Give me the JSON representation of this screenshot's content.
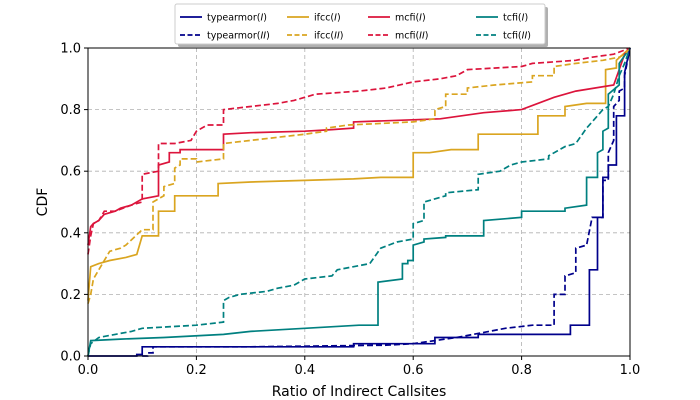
{
  "chart_data": {
    "type": "line",
    "subtype": "step-cdf",
    "title": "",
    "xlabel": "Ratio of Indirect Callsites",
    "ylabel": "CDF",
    "xlim": [
      0,
      1
    ],
    "ylim": [
      0,
      1
    ],
    "xticks": [
      "0.0",
      "0.2",
      "0.4",
      "0.6",
      "0.8",
      "1.0"
    ],
    "yticks": [
      "0.0",
      "0.2",
      "0.4",
      "0.6",
      "0.8",
      "1.0"
    ],
    "grid": true,
    "legend": {
      "placement": "top-center",
      "columns": 4
    },
    "series": [
      {
        "name": "typearmor(I)",
        "label_base": "typearmor(",
        "label_italic": "I",
        "label_end": ")",
        "color": "#00008b",
        "dash": "solid",
        "points": [
          [
            0.0,
            0.0
          ],
          [
            0.09,
            0.0
          ],
          [
            0.09,
            0.005
          ],
          [
            0.1,
            0.005
          ],
          [
            0.1,
            0.03
          ],
          [
            0.49,
            0.03
          ],
          [
            0.49,
            0.04
          ],
          [
            0.64,
            0.04
          ],
          [
            0.64,
            0.06
          ],
          [
            0.72,
            0.06
          ],
          [
            0.72,
            0.07
          ],
          [
            0.89,
            0.07
          ],
          [
            0.89,
            0.1
          ],
          [
            0.925,
            0.1
          ],
          [
            0.925,
            0.28
          ],
          [
            0.94,
            0.28
          ],
          [
            0.94,
            0.45
          ],
          [
            0.95,
            0.45
          ],
          [
            0.95,
            0.58
          ],
          [
            0.96,
            0.58
          ],
          [
            0.96,
            0.62
          ],
          [
            0.975,
            0.62
          ],
          [
            0.975,
            0.78
          ],
          [
            0.99,
            0.78
          ],
          [
            0.99,
            0.92
          ],
          [
            1.0,
            1.0
          ]
        ]
      },
      {
        "name": "ifcc(I)",
        "label_base": "ifcc(",
        "label_italic": "I",
        "label_end": ")",
        "color": "#daa520",
        "dash": "solid",
        "points": [
          [
            0.0,
            0.18
          ],
          [
            0.005,
            0.29
          ],
          [
            0.02,
            0.3
          ],
          [
            0.04,
            0.31
          ],
          [
            0.07,
            0.32
          ],
          [
            0.09,
            0.33
          ],
          [
            0.1,
            0.39
          ],
          [
            0.13,
            0.39
          ],
          [
            0.13,
            0.47
          ],
          [
            0.16,
            0.47
          ],
          [
            0.16,
            0.52
          ],
          [
            0.24,
            0.52
          ],
          [
            0.24,
            0.56
          ],
          [
            0.3,
            0.565
          ],
          [
            0.4,
            0.57
          ],
          [
            0.49,
            0.575
          ],
          [
            0.54,
            0.58
          ],
          [
            0.6,
            0.58
          ],
          [
            0.6,
            0.66
          ],
          [
            0.63,
            0.66
          ],
          [
            0.67,
            0.67
          ],
          [
            0.72,
            0.67
          ],
          [
            0.72,
            0.72
          ],
          [
            0.83,
            0.72
          ],
          [
            0.83,
            0.78
          ],
          [
            0.88,
            0.78
          ],
          [
            0.88,
            0.81
          ],
          [
            0.92,
            0.82
          ],
          [
            0.955,
            0.82
          ],
          [
            0.955,
            0.93
          ],
          [
            0.975,
            0.935
          ],
          [
            0.975,
            0.96
          ],
          [
            1.0,
            1.0
          ]
        ]
      },
      {
        "name": "mcfi(I)",
        "label_base": "mcfi(",
        "label_italic": "I",
        "label_end": ")",
        "color": "#dc143c",
        "dash": "solid",
        "points": [
          [
            0.0,
            0.36
          ],
          [
            0.005,
            0.42
          ],
          [
            0.01,
            0.43
          ],
          [
            0.02,
            0.44
          ],
          [
            0.03,
            0.46
          ],
          [
            0.05,
            0.47
          ],
          [
            0.06,
            0.48
          ],
          [
            0.08,
            0.49
          ],
          [
            0.1,
            0.51
          ],
          [
            0.13,
            0.52
          ],
          [
            0.13,
            0.62
          ],
          [
            0.15,
            0.63
          ],
          [
            0.15,
            0.66
          ],
          [
            0.17,
            0.66
          ],
          [
            0.17,
            0.67
          ],
          [
            0.25,
            0.67
          ],
          [
            0.25,
            0.72
          ],
          [
            0.3,
            0.725
          ],
          [
            0.4,
            0.73
          ],
          [
            0.45,
            0.735
          ],
          [
            0.49,
            0.74
          ],
          [
            0.49,
            0.76
          ],
          [
            0.65,
            0.77
          ],
          [
            0.73,
            0.79
          ],
          [
            0.8,
            0.8
          ],
          [
            0.86,
            0.84
          ],
          [
            0.9,
            0.86
          ],
          [
            0.97,
            0.88
          ],
          [
            0.98,
            0.93
          ],
          [
            0.99,
            0.98
          ],
          [
            1.0,
            1.0
          ]
        ]
      },
      {
        "name": "tcfi(I)",
        "label_base": "tcfi(",
        "label_italic": "I",
        "label_end": ")",
        "color": "#008080",
        "dash": "solid",
        "points": [
          [
            0.0,
            0.0
          ],
          [
            0.005,
            0.05
          ],
          [
            0.06,
            0.055
          ],
          [
            0.14,
            0.06
          ],
          [
            0.25,
            0.07
          ],
          [
            0.3,
            0.08
          ],
          [
            0.4,
            0.09
          ],
          [
            0.5,
            0.1
          ],
          [
            0.535,
            0.1
          ],
          [
            0.535,
            0.24
          ],
          [
            0.58,
            0.25
          ],
          [
            0.58,
            0.3
          ],
          [
            0.59,
            0.3
          ],
          [
            0.59,
            0.31
          ],
          [
            0.6,
            0.31
          ],
          [
            0.6,
            0.36
          ],
          [
            0.62,
            0.37
          ],
          [
            0.62,
            0.38
          ],
          [
            0.66,
            0.385
          ],
          [
            0.66,
            0.39
          ],
          [
            0.73,
            0.39
          ],
          [
            0.73,
            0.44
          ],
          [
            0.8,
            0.45
          ],
          [
            0.8,
            0.47
          ],
          [
            0.88,
            0.47
          ],
          [
            0.88,
            0.48
          ],
          [
            0.92,
            0.49
          ],
          [
            0.92,
            0.58
          ],
          [
            0.94,
            0.58
          ],
          [
            0.94,
            0.66
          ],
          [
            0.95,
            0.67
          ],
          [
            0.95,
            0.73
          ],
          [
            0.96,
            0.74
          ],
          [
            0.96,
            0.85
          ],
          [
            0.98,
            0.88
          ],
          [
            0.98,
            0.95
          ],
          [
            1.0,
            1.0
          ]
        ]
      },
      {
        "name": "typearmor(II)",
        "label_base": "typearmor(",
        "label_italic": "II",
        "label_end": ")",
        "color": "#00008b",
        "dash": "dashed",
        "points": [
          [
            0.1,
            0.0
          ],
          [
            0.11,
            0.0
          ],
          [
            0.11,
            0.01
          ],
          [
            0.12,
            0.01
          ],
          [
            0.12,
            0.03
          ],
          [
            0.3,
            0.03
          ],
          [
            0.55,
            0.035
          ],
          [
            0.6,
            0.04
          ],
          [
            0.64,
            0.05
          ],
          [
            0.68,
            0.06
          ],
          [
            0.74,
            0.08
          ],
          [
            0.77,
            0.09
          ],
          [
            0.82,
            0.1
          ],
          [
            0.86,
            0.1
          ],
          [
            0.86,
            0.2
          ],
          [
            0.88,
            0.2
          ],
          [
            0.88,
            0.26
          ],
          [
            0.9,
            0.27
          ],
          [
            0.9,
            0.35
          ],
          [
            0.92,
            0.36
          ],
          [
            0.93,
            0.45
          ],
          [
            0.95,
            0.45
          ],
          [
            0.95,
            0.57
          ],
          [
            0.96,
            0.57
          ],
          [
            0.96,
            0.66
          ],
          [
            0.97,
            0.7
          ],
          [
            0.97,
            0.81
          ],
          [
            0.98,
            0.83
          ],
          [
            0.98,
            0.86
          ],
          [
            0.99,
            0.87
          ],
          [
            0.99,
            0.91
          ],
          [
            1.0,
            1.0
          ]
        ]
      },
      {
        "name": "ifcc(II)",
        "label_base": "ifcc(",
        "label_italic": "II",
        "label_end": ")",
        "color": "#daa520",
        "dash": "dashed",
        "points": [
          [
            0.0,
            0.17
          ],
          [
            0.005,
            0.2
          ],
          [
            0.01,
            0.25
          ],
          [
            0.02,
            0.28
          ],
          [
            0.04,
            0.34
          ],
          [
            0.06,
            0.35
          ],
          [
            0.07,
            0.36
          ],
          [
            0.1,
            0.41
          ],
          [
            0.12,
            0.41
          ],
          [
            0.12,
            0.5
          ],
          [
            0.14,
            0.52
          ],
          [
            0.14,
            0.55
          ],
          [
            0.16,
            0.56
          ],
          [
            0.16,
            0.61
          ],
          [
            0.17,
            0.62
          ],
          [
            0.17,
            0.64
          ],
          [
            0.2,
            0.64
          ],
          [
            0.2,
            0.63
          ],
          [
            0.25,
            0.64
          ],
          [
            0.25,
            0.69
          ],
          [
            0.3,
            0.7
          ],
          [
            0.35,
            0.71
          ],
          [
            0.4,
            0.72
          ],
          [
            0.44,
            0.73
          ],
          [
            0.44,
            0.74
          ],
          [
            0.48,
            0.75
          ],
          [
            0.6,
            0.76
          ],
          [
            0.64,
            0.77
          ],
          [
            0.64,
            0.8
          ],
          [
            0.66,
            0.81
          ],
          [
            0.66,
            0.85
          ],
          [
            0.7,
            0.85
          ],
          [
            0.7,
            0.87
          ],
          [
            0.75,
            0.88
          ],
          [
            0.82,
            0.89
          ],
          [
            0.82,
            0.91
          ],
          [
            0.86,
            0.91
          ],
          [
            0.86,
            0.94
          ],
          [
            0.9,
            0.95
          ],
          [
            0.95,
            0.96
          ],
          [
            0.98,
            0.97
          ],
          [
            0.99,
            0.98
          ],
          [
            1.0,
            1.0
          ]
        ]
      },
      {
        "name": "mcfi(II)",
        "label_base": "mcfi(",
        "label_italic": "II",
        "label_end": ")",
        "color": "#dc143c",
        "dash": "dashed",
        "points": [
          [
            0.0,
            0.33
          ],
          [
            0.005,
            0.39
          ],
          [
            0.01,
            0.43
          ],
          [
            0.02,
            0.44
          ],
          [
            0.03,
            0.47
          ],
          [
            0.05,
            0.47
          ],
          [
            0.08,
            0.49
          ],
          [
            0.1,
            0.5
          ],
          [
            0.1,
            0.59
          ],
          [
            0.13,
            0.6
          ],
          [
            0.13,
            0.66
          ],
          [
            0.13,
            0.69
          ],
          [
            0.14,
            0.69
          ],
          [
            0.16,
            0.69
          ],
          [
            0.19,
            0.7
          ],
          [
            0.2,
            0.73
          ],
          [
            0.22,
            0.75
          ],
          [
            0.25,
            0.75
          ],
          [
            0.25,
            0.8
          ],
          [
            0.3,
            0.81
          ],
          [
            0.35,
            0.82
          ],
          [
            0.38,
            0.83
          ],
          [
            0.42,
            0.85
          ],
          [
            0.5,
            0.86
          ],
          [
            0.55,
            0.87
          ],
          [
            0.6,
            0.89
          ],
          [
            0.65,
            0.9
          ],
          [
            0.68,
            0.91
          ],
          [
            0.7,
            0.93
          ],
          [
            0.8,
            0.94
          ],
          [
            0.82,
            0.95
          ],
          [
            0.9,
            0.96
          ],
          [
            0.93,
            0.97
          ],
          [
            0.97,
            0.98
          ],
          [
            1.0,
            1.0
          ]
        ]
      },
      {
        "name": "tcfi(II)",
        "label_base": "tcfi(",
        "label_italic": "II",
        "label_end": ")",
        "color": "#008080",
        "dash": "dashed",
        "points": [
          [
            0.0,
            0.0
          ],
          [
            0.005,
            0.04
          ],
          [
            0.02,
            0.06
          ],
          [
            0.05,
            0.07
          ],
          [
            0.08,
            0.08
          ],
          [
            0.1,
            0.09
          ],
          [
            0.2,
            0.1
          ],
          [
            0.25,
            0.11
          ],
          [
            0.25,
            0.18
          ],
          [
            0.26,
            0.19
          ],
          [
            0.28,
            0.2
          ],
          [
            0.33,
            0.21
          ],
          [
            0.35,
            0.22
          ],
          [
            0.38,
            0.23
          ],
          [
            0.4,
            0.25
          ],
          [
            0.45,
            0.26
          ],
          [
            0.46,
            0.28
          ],
          [
            0.49,
            0.29
          ],
          [
            0.52,
            0.3
          ],
          [
            0.54,
            0.35
          ],
          [
            0.57,
            0.37
          ],
          [
            0.6,
            0.38
          ],
          [
            0.6,
            0.43
          ],
          [
            0.62,
            0.44
          ],
          [
            0.62,
            0.5
          ],
          [
            0.66,
            0.52
          ],
          [
            0.66,
            0.53
          ],
          [
            0.72,
            0.54
          ],
          [
            0.72,
            0.59
          ],
          [
            0.76,
            0.6
          ],
          [
            0.78,
            0.62
          ],
          [
            0.8,
            0.63
          ],
          [
            0.85,
            0.64
          ],
          [
            0.85,
            0.65
          ],
          [
            0.88,
            0.68
          ],
          [
            0.9,
            0.69
          ],
          [
            0.92,
            0.74
          ],
          [
            0.95,
            0.8
          ],
          [
            0.96,
            0.81
          ],
          [
            0.97,
            0.85
          ],
          [
            0.98,
            0.91
          ],
          [
            0.99,
            0.95
          ],
          [
            1.0,
            1.0
          ]
        ]
      }
    ]
  }
}
